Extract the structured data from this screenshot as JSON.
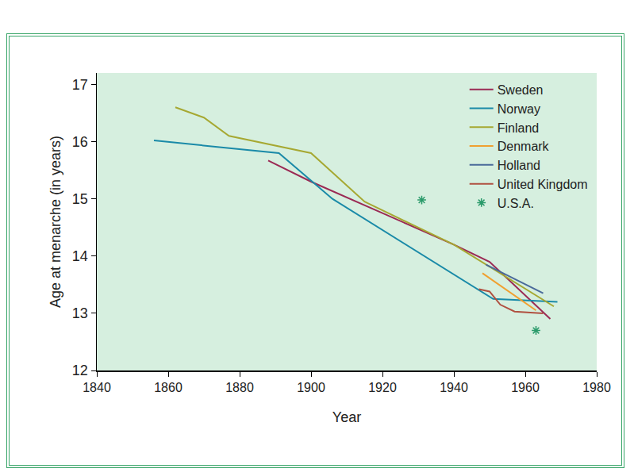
{
  "chart_data": {
    "type": "line",
    "x_label": "Year",
    "y_label": "Age at menarche (in years)",
    "xlim": [
      1840,
      1980
    ],
    "xticks": [
      1840,
      1860,
      1880,
      1900,
      1920,
      1940,
      1960,
      1980
    ],
    "ylim": [
      12,
      17.2
    ],
    "yticks": [
      12,
      13,
      14,
      15,
      16,
      17
    ],
    "grid": false,
    "legend": "top right",
    "series": [
      {
        "name": "Sweden",
        "color": "#9b2a54",
        "type": "line",
        "x": [
          1888,
          1900,
          1920,
          1940,
          1950,
          1967
        ],
        "values": [
          15.67,
          15.3,
          14.75,
          14.2,
          13.9,
          12.9
        ]
      },
      {
        "name": "Norway",
        "color": "#1a8aa8",
        "type": "line",
        "x": [
          1856,
          1891,
          1906,
          1951,
          1969
        ],
        "values": [
          16.02,
          15.8,
          15.0,
          13.25,
          13.2
        ]
      },
      {
        "name": "Finland",
        "color": "#a6a832",
        "type": "line",
        "x": [
          1862,
          1870,
          1877,
          1900,
          1915,
          1940,
          1968
        ],
        "values": [
          16.6,
          16.42,
          16.1,
          15.8,
          14.95,
          14.2,
          13.12
        ]
      },
      {
        "name": "Denmark",
        "color": "#f0a030",
        "type": "line",
        "x": [
          1948,
          1963
        ],
        "values": [
          13.7,
          13.05
        ]
      },
      {
        "name": "Holland",
        "color": "#4a6a9a",
        "type": "line",
        "x": [
          1949,
          1965
        ],
        "values": [
          13.85,
          13.35
        ]
      },
      {
        "name": "United Kingdom",
        "color": "#b05040",
        "type": "line",
        "x": [
          1947,
          1950,
          1953,
          1957,
          1965
        ],
        "values": [
          13.42,
          13.38,
          13.15,
          13.03,
          13.0
        ]
      },
      {
        "name": "U.S.A.",
        "color": "#2a9a6a",
        "type": "scatter",
        "marker": "asterisk",
        "x": [
          1931,
          1963
        ],
        "values": [
          14.98,
          12.7
        ]
      }
    ]
  }
}
